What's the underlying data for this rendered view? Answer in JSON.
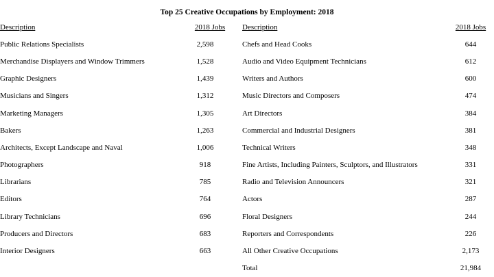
{
  "title": "Top 25 Creative Occupations by Employment: 2018",
  "tables": [
    {
      "header": [
        "Description",
        "2018 Jobs"
      ],
      "rows": [
        [
          "Public Relations Specialists",
          "2,598"
        ],
        [
          "Merchandise Displayers and Window Trimmers",
          "1,528"
        ],
        [
          "Graphic Designers",
          "1,439"
        ],
        [
          "Musicians and Singers",
          "1,312"
        ],
        [
          "Marketing Managers",
          "1,305"
        ],
        [
          "Bakers",
          "1,263"
        ],
        [
          "Architects, Except Landscape and Naval",
          "1,006"
        ],
        [
          "Photographers",
          "918"
        ],
        [
          "Librarians",
          "785"
        ],
        [
          "Editors",
          "764"
        ],
        [
          "Library Technicians",
          "696"
        ],
        [
          "Producers and Directors",
          "683"
        ],
        [
          "Interior Designers",
          "663"
        ]
      ]
    },
    {
      "header": [
        "Description",
        "2018 Jobs"
      ],
      "rows": [
        [
          "Chefs and Head Cooks",
          "644"
        ],
        [
          "Audio and Video Equipment Technicians",
          "612"
        ],
        [
          "Writers and Authors",
          "600"
        ],
        [
          "Music Directors and Composers",
          "474"
        ],
        [
          "Art Directors",
          "384"
        ],
        [
          "Commercial and Industrial Designers",
          "381"
        ],
        [
          "Technical Writers",
          "348"
        ],
        [
          "Fine Artists, Including Painters, Sculptors, and Illustrators",
          "331"
        ],
        [
          "Radio and Television Announcers",
          "321"
        ],
        [
          "Actors",
          "287"
        ],
        [
          "Floral Designers",
          "244"
        ],
        [
          "Reporters and Correspondents",
          "226"
        ],
        [
          "All Other Creative Occupations",
          "2,173"
        ],
        [
          "Total",
          "21,984"
        ]
      ]
    }
  ]
}
